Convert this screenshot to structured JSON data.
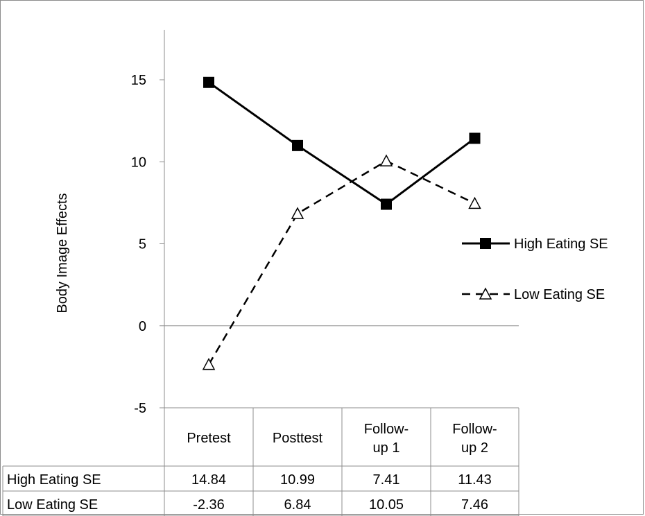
{
  "chart_data": {
    "type": "line",
    "ylabel": "Body Image Effects",
    "ylim": [
      -5,
      15
    ],
    "yticks": [
      -5,
      0,
      5,
      10,
      15
    ],
    "categories": [
      "Pretest",
      "Posttest",
      "Follow-up 1",
      "Follow-up 2"
    ],
    "series": [
      {
        "name": "High Eating SE",
        "values": [
          14.84,
          10.99,
          7.41,
          11.43
        ],
        "display": [
          "14.84",
          "10.99",
          "7.41",
          "11.43"
        ],
        "line_style": "solid",
        "marker": "filled-square"
      },
      {
        "name": "Low Eating SE",
        "values": [
          -2.36,
          6.84,
          10.05,
          7.46
        ],
        "display": [
          "-2.36",
          "6.84",
          "10.05",
          "7.46"
        ],
        "line_style": "dashed",
        "marker": "open-triangle"
      }
    ],
    "legend": "right",
    "data_table": true,
    "grid": false
  }
}
